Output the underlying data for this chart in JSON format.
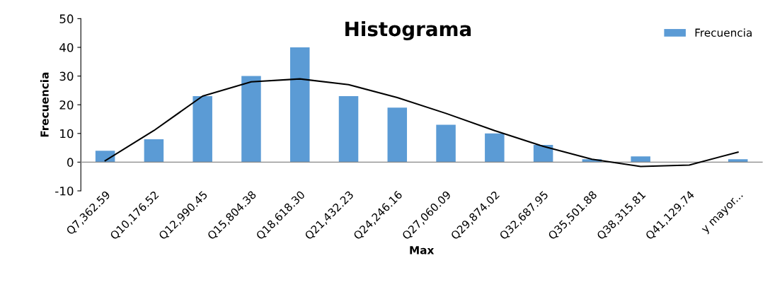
{
  "chart_data": {
    "type": "bar",
    "title": "Histograma",
    "xlabel": "Max",
    "ylabel": "Frecuencia",
    "categories": [
      "Q7,362.59",
      "Q10,176.52",
      "Q12,990.45",
      "Q15,804.38",
      "Q18,618.30",
      "Q21,432.23",
      "Q24,246.16",
      "Q27,060.09",
      "Q29,874.02",
      "Q32,687.95",
      "Q35,501.88",
      "Q38,315.81",
      "Q41,129.74",
      "y mayor..."
    ],
    "series": [
      {
        "name": "Frecuencia",
        "color": "#5b9bd5",
        "values": [
          4,
          8,
          23,
          30,
          40,
          23,
          19,
          13,
          10,
          6,
          1,
          2,
          0,
          1
        ]
      },
      {
        "type": "line",
        "color": "#000000",
        "values": [
          0.5,
          11,
          23,
          28,
          29,
          27,
          22.5,
          17,
          11,
          5.5,
          1,
          -1.5,
          -1,
          3.5
        ]
      }
    ],
    "ylim": [
      -10,
      50
    ],
    "yticks": [
      -10,
      0,
      10,
      20,
      30,
      40,
      50
    ],
    "legend": "top right"
  }
}
